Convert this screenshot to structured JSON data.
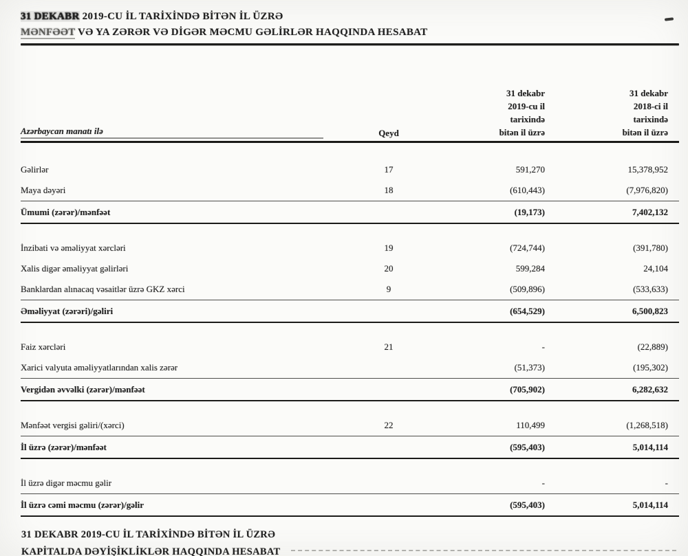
{
  "document": {
    "header": {
      "title1_em": "31 DEKABR",
      "title1_rest": " 2019-CU İL TARİXİNDƏ BİTƏN İL ÜZRƏ",
      "title2_em": "MƏNFƏƏT",
      "title2_rest": " VƏ YA ZƏRƏR VƏ DİGƏR MƏCMU GƏLİRLƏR HAQQINDA HESABAT"
    },
    "table": {
      "currency_note": "Azərbaycan manatı ilə",
      "note_col_header": "Qeyd",
      "period_2019_header": "31 dekabr\n2019-cu il\ntarixində\nbitən il üzrə",
      "period_2018_header": "31 dekabr\n2018-ci il\ntarixində\nbitən il üzrə",
      "rows": [
        {
          "label": "Gəlirlər",
          "note": "17",
          "y2019": "591,270",
          "y2018": "15,378,952"
        },
        {
          "label": "Maya dəyəri",
          "note": "18",
          "y2019": "(610,443)",
          "y2018": "(7,976,820)"
        },
        {
          "label": "Ümumi (zərər)/mənfəət",
          "note": "",
          "y2019": "(19,173)",
          "y2018": "7,402,132"
        },
        {
          "label": "İnzibati və əməliyyat xərcləri",
          "note": "19",
          "y2019": "(724,744)",
          "y2018": "(391,780)"
        },
        {
          "label": "Xalis digər əməliyyat gəlirləri",
          "note": "20",
          "y2019": "599,284",
          "y2018": "24,104"
        },
        {
          "label": "Banklardan alınacaq vəsaitlər üzrə GKZ xərci",
          "note": "9",
          "y2019": "(509,896)",
          "y2018": "(533,633)"
        },
        {
          "label": "Əməliyyat (zərəri)/gəliri",
          "note": "",
          "y2019": "(654,529)",
          "y2018": "6,500,823"
        },
        {
          "label": "Faiz xərcləri",
          "note": "21",
          "y2019": "-",
          "y2018": "(22,889)"
        },
        {
          "label": "Xarici valyuta əməliyyatlarından xalis zərər",
          "note": "",
          "y2019": "(51,373)",
          "y2018": "(195,302)"
        },
        {
          "label": "Vergidən əvvəlki (zərər)/mənfəət",
          "note": "",
          "y2019": "(705,902)",
          "y2018": "6,282,632"
        },
        {
          "label": "Mənfəət vergisi gəliri/(xərci)",
          "note": "22",
          "y2019": "110,499",
          "y2018": "(1,268,518)"
        },
        {
          "label": "İl üzrə (zərər)/mənfəət",
          "note": "",
          "y2019": "(595,403)",
          "y2018": "5,014,114"
        },
        {
          "label": "İl üzrə digər məcmu gəlir",
          "note": "",
          "y2019": "-",
          "y2018": "-"
        },
        {
          "label": "İl üzrə cəmi məcmu (zərər)/gəlir",
          "note": "",
          "y2019": "(595,403)",
          "y2018": "5,014,114"
        }
      ]
    },
    "footer": {
      "title_line1": "31 DEKABR 2019-CU İL TARİXİNDƏ BİTƏN İL ÜZRƏ",
      "title_line2": "KAPİTALDA DƏYİŞİKLİKLƏR HAQQINDA HESABAT"
    }
  }
}
